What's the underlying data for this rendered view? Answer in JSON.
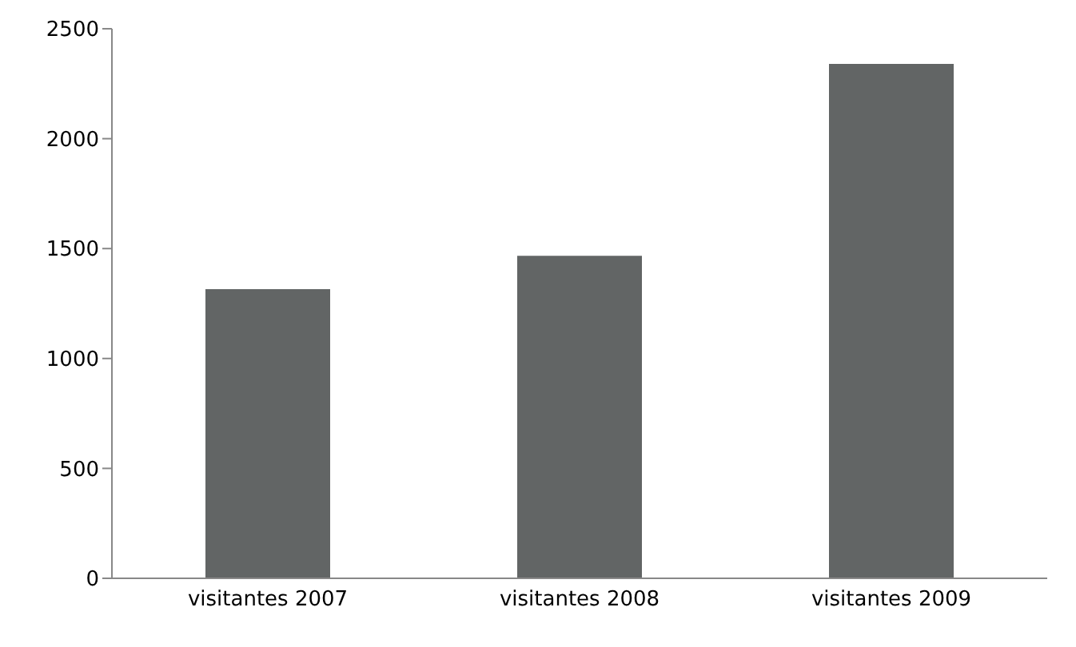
{
  "chart_data": {
    "type": "bar",
    "categories": [
      "visitantes 2007",
      "visitantes 2008",
      "visitantes 2009"
    ],
    "values": [
      1315,
      1467,
      2340
    ],
    "color": "#626565",
    "ylim": [
      0,
      2500
    ],
    "yticks": [
      0,
      500,
      1000,
      1500,
      2000,
      2500
    ],
    "grid": false
  }
}
